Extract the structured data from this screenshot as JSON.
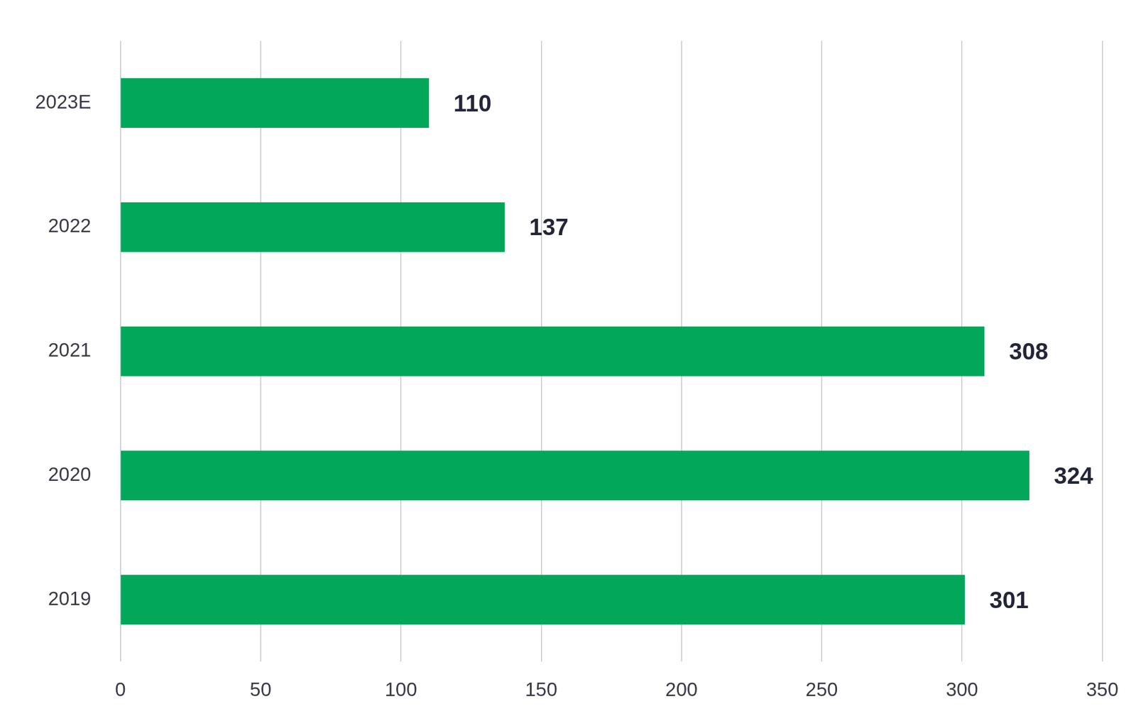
{
  "chart_data": {
    "type": "bar",
    "orientation": "horizontal",
    "categories": [
      "2023E",
      "2022",
      "2021",
      "2020",
      "2019"
    ],
    "values": [
      110,
      137,
      308,
      324,
      301
    ],
    "color": "#02a759",
    "xlim": [
      0,
      350
    ],
    "xticks": [
      0,
      50,
      100,
      150,
      200,
      250,
      300,
      350
    ],
    "grid": true,
    "data_labels": true
  }
}
